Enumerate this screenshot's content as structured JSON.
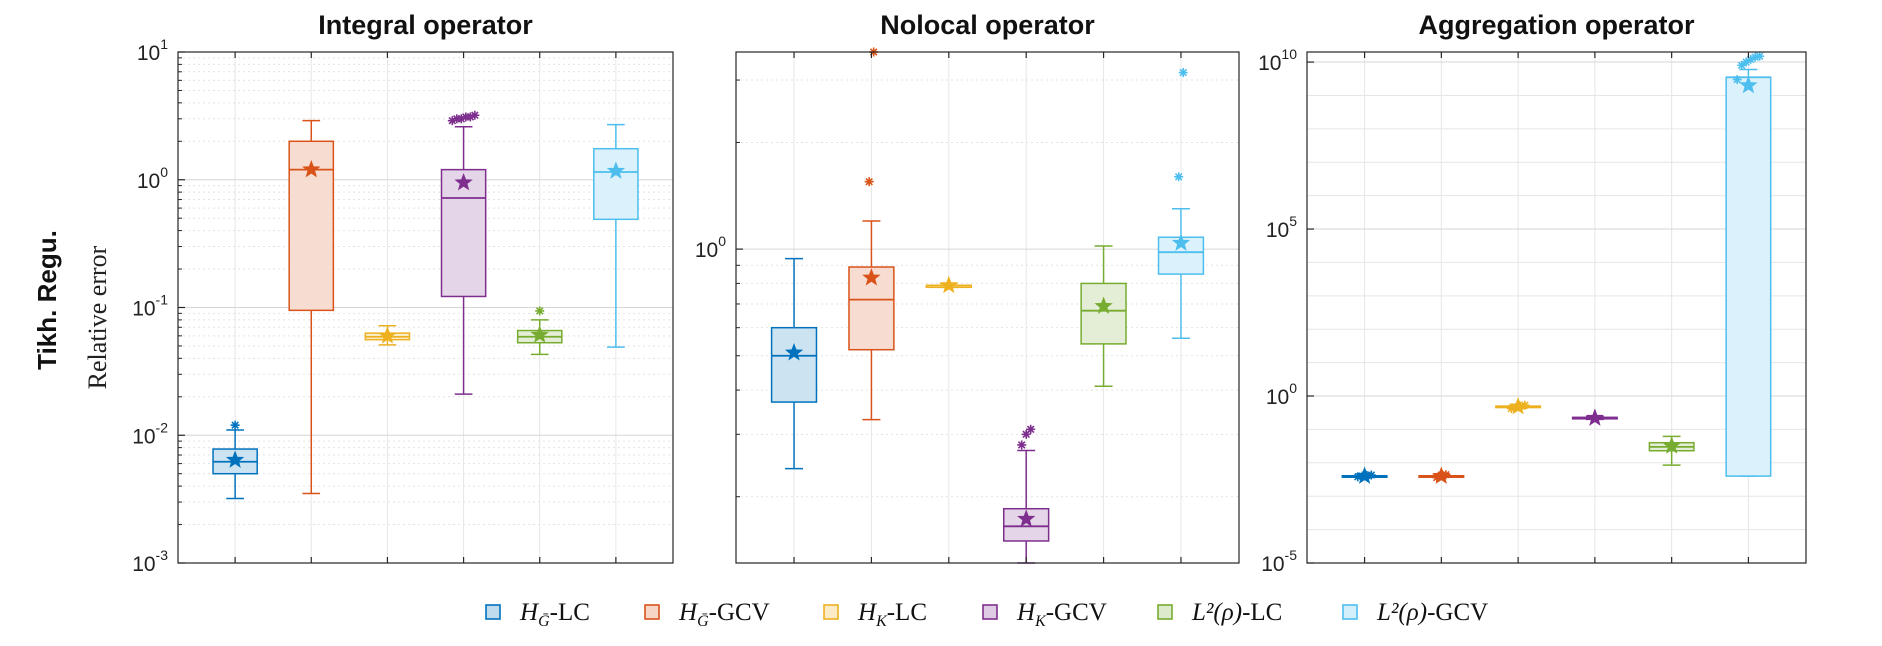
{
  "row_label": "Tikh. Regu.",
  "y_axis_label": "Relative error",
  "legend": [
    {
      "main": "H",
      "sub": "Ḡ",
      "suffix": "-LC",
      "color": "#0072BD"
    },
    {
      "main": "H",
      "sub": "Ḡ",
      "suffix": "-GCV",
      "color": "#D95319"
    },
    {
      "main": "H",
      "sub": "K",
      "suffix": "-LC",
      "color": "#EDB120"
    },
    {
      "main": "H",
      "sub": "K",
      "suffix": "-GCV",
      "color": "#7E2F8E"
    },
    {
      "main": "L²(ρ)",
      "sub": "",
      "suffix": "-LC",
      "color": "#77AC30"
    },
    {
      "main": "L²(ρ)",
      "sub": "",
      "suffix": "-GCV",
      "color": "#4DBEEE"
    }
  ],
  "chart_data": [
    {
      "type": "box",
      "title": "Integral operator",
      "yscale": "log",
      "ylim": [
        0.001,
        10
      ],
      "yticks": [
        {
          "base": "10",
          "exp": "1",
          "value": 10
        },
        {
          "base": "10",
          "exp": "0",
          "value": 1
        },
        {
          "base": "10",
          "exp": "-1",
          "value": 0.1
        },
        {
          "base": "10",
          "exp": "-2",
          "value": 0.01
        },
        {
          "base": "10",
          "exp": "-3",
          "value": 0.001
        }
      ],
      "grid": true,
      "boxes": [
        {
          "series": "HG-LC",
          "whisker_low": 0.0032,
          "q1": 0.005,
          "median": 0.0062,
          "q3": 0.0078,
          "whisker_high": 0.011,
          "mean": 0.0064,
          "outliers": [
            0.012
          ]
        },
        {
          "series": "HG-GCV",
          "whisker_low": 0.0035,
          "q1": 0.095,
          "median": 1.2,
          "q3": 2.0,
          "whisker_high": 2.9,
          "mean": 1.2,
          "outliers": []
        },
        {
          "series": "HK-LC",
          "whisker_low": 0.051,
          "q1": 0.056,
          "median": 0.059,
          "q3": 0.063,
          "whisker_high": 0.072,
          "mean": 0.06,
          "outliers": []
        },
        {
          "series": "HK-GCV",
          "whisker_low": 0.021,
          "q1": 0.122,
          "median": 0.72,
          "q3": 1.2,
          "whisker_high": 2.6,
          "mean": 0.95,
          "outliers": [
            2.9,
            3.0,
            3.0,
            3.1,
            3.1,
            3.2
          ]
        },
        {
          "series": "L2-LC",
          "whisker_low": 0.043,
          "q1": 0.053,
          "median": 0.059,
          "q3": 0.066,
          "whisker_high": 0.08,
          "mean": 0.061,
          "outliers": [
            0.094
          ]
        },
        {
          "series": "L2-GCV",
          "whisker_low": 0.049,
          "q1": 0.49,
          "median": 1.15,
          "q3": 1.75,
          "whisker_high": 2.7,
          "mean": 1.17,
          "outliers": []
        }
      ]
    },
    {
      "type": "box",
      "title": "Nolocal operator",
      "yscale": "log",
      "ylim": [
        0.13,
        3.6
      ],
      "yticks": [
        {
          "base": "10",
          "exp": "0",
          "value": 1
        }
      ],
      "grid": true,
      "boxes": [
        {
          "series": "HG-LC",
          "whisker_low": 0.24,
          "q1": 0.37,
          "median": 0.5,
          "q3": 0.6,
          "whisker_high": 0.94,
          "mean": 0.51,
          "outliers": []
        },
        {
          "series": "HG-GCV",
          "whisker_low": 0.33,
          "q1": 0.52,
          "median": 0.72,
          "q3": 0.89,
          "whisker_high": 1.2,
          "mean": 0.83,
          "outliers": [
            1.55,
            3.6
          ]
        },
        {
          "series": "HK-LC",
          "whisker_low": 0.78,
          "q1": 0.78,
          "median": 0.79,
          "q3": 0.79,
          "whisker_high": 0.8,
          "mean": 0.79,
          "outliers": []
        },
        {
          "series": "HK-GCV",
          "whisker_low": 0.13,
          "q1": 0.15,
          "median": 0.165,
          "q3": 0.185,
          "whisker_high": 0.27,
          "mean": 0.173,
          "outliers": [
            0.28,
            0.3,
            0.31
          ]
        },
        {
          "series": "L2-LC",
          "whisker_low": 0.41,
          "q1": 0.54,
          "median": 0.67,
          "q3": 0.8,
          "whisker_high": 1.02,
          "mean": 0.69,
          "outliers": []
        },
        {
          "series": "L2-GCV",
          "whisker_low": 0.56,
          "q1": 0.85,
          "median": 0.98,
          "q3": 1.08,
          "whisker_high": 1.3,
          "mean": 1.04,
          "outliers": [
            1.6,
            3.15
          ]
        }
      ]
    },
    {
      "type": "box",
      "title": "Aggregation operator",
      "yscale": "log",
      "ylim": [
        1e-05,
        20000000000
      ],
      "yticks": [
        {
          "base": "10",
          "exp": "10",
          "value": 10000000000
        },
        {
          "base": "10",
          "exp": "5",
          "value": 100000
        },
        {
          "base": "10",
          "exp": "0",
          "value": 1
        },
        {
          "base": "10",
          "exp": "-5",
          "value": 1e-05
        }
      ],
      "grid": true,
      "boxes": [
        {
          "series": "HG-LC",
          "whisker_low": 0.0039,
          "q1": 0.0039,
          "median": 0.004,
          "q3": 0.0041,
          "whisker_high": 0.0042,
          "mean": 0.004,
          "outliers": [
            0.0038,
            0.004,
            0.0042,
            0.0043
          ]
        },
        {
          "series": "HG-GCV",
          "whisker_low": 0.0038,
          "q1": 0.0039,
          "median": 0.004,
          "q3": 0.0041,
          "whisker_high": 0.0042,
          "mean": 0.004,
          "outliers": [
            0.0036,
            0.0043,
            0.0044
          ]
        },
        {
          "series": "HK-LC",
          "whisker_low": 0.43,
          "q1": 0.46,
          "median": 0.48,
          "q3": 0.5,
          "whisker_high": 0.52,
          "mean": 0.48,
          "outliers": [
            0.42,
            0.45,
            0.5,
            0.53
          ]
        },
        {
          "series": "HK-GCV",
          "whisker_low": 0.2,
          "q1": 0.22,
          "median": 0.22,
          "q3": 0.23,
          "whisker_high": 0.24,
          "mean": 0.22,
          "outliers": []
        },
        {
          "series": "L2-LC",
          "whisker_low": 0.0085,
          "q1": 0.023,
          "median": 0.03,
          "q3": 0.04,
          "whisker_high": 0.062,
          "mean": 0.032,
          "outliers": []
        },
        {
          "series": "L2-GCV",
          "whisker_low": 0.004,
          "q1": 0.004,
          "median": 3500000000,
          "q3": 3500000000,
          "whisker_high": 6000000000,
          "mean": 2000000000,
          "outliers": [
            3000000000,
            8000000000,
            10000000000,
            12000000000,
            14000000000,
            15000000000
          ]
        }
      ]
    }
  ]
}
